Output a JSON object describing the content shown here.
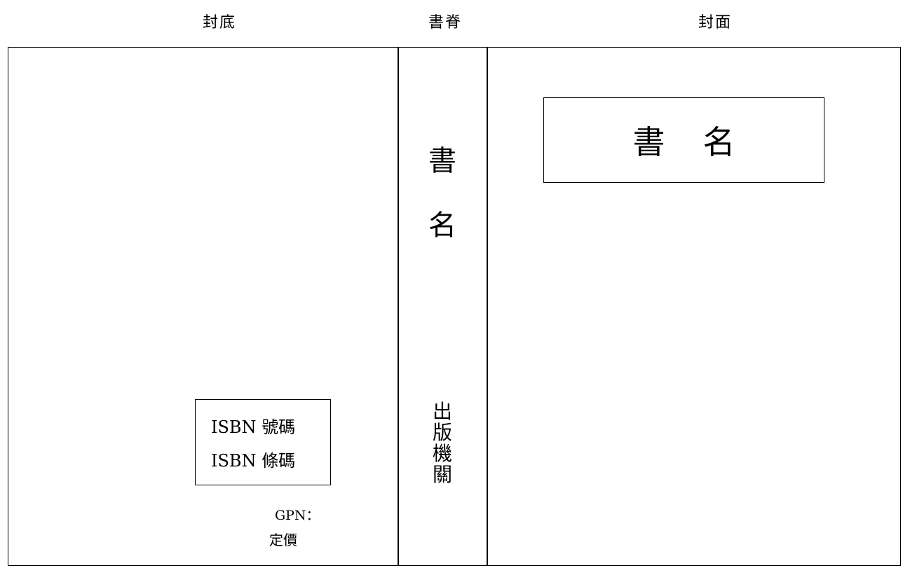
{
  "labels": {
    "back_cover": "封底",
    "spine": "書脊",
    "front_cover": "封面"
  },
  "spine": {
    "title_chars": [
      "書",
      "名"
    ],
    "publisher_chars": [
      "出",
      "版",
      "機",
      "關"
    ]
  },
  "front_cover": {
    "title_part1": "書",
    "title_part2": "名"
  },
  "back_cover": {
    "isbn_number": "ISBN 號碼",
    "isbn_barcode": "ISBN 條碼",
    "gpn": "GPN：",
    "price": "定價"
  }
}
